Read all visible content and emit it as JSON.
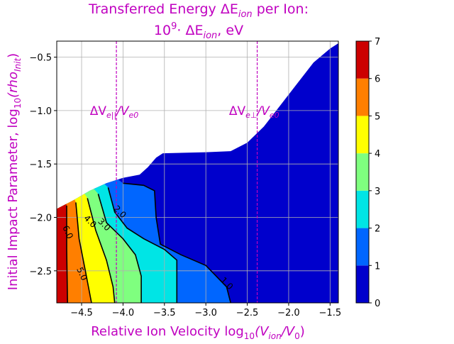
{
  "chart_data": {
    "type": "contourf",
    "title_line1": "Transferred Energy ΔE",
    "title_line1_sub": "ion",
    "title_line1_end": " per Ion:",
    "title_line2_pre": "10",
    "title_line2_sup": "9",
    "title_line2_mid": "· ΔE",
    "title_line2_sub": "ion",
    "title_line2_end": ", eV",
    "xlabel_pre": "Relative Ion Velocity  log",
    "xlabel_sub1": "10",
    "xlabel_mid": "(V",
    "xlabel_sub2": "ion",
    "xlabel_end": "/V",
    "xlabel_sub3": "0",
    "xlabel_close": ")",
    "ylabel_pre": "Initial Impact Parameter, log",
    "ylabel_sub1": "10",
    "ylabel_mid": "(rho",
    "ylabel_sub2": "Init",
    "ylabel_end": ")",
    "xlim": [
      -4.8,
      -1.4
    ],
    "ylim": [
      -2.8,
      -0.35
    ],
    "xticks": [
      -4.5,
      -4.0,
      -3.5,
      -3.0,
      -2.5,
      -2.0,
      -1.5
    ],
    "xtick_labels": [
      "−4.5",
      "−4.0",
      "−3.5",
      "−3.0",
      "−2.5",
      "−2.0",
      "−1.5"
    ],
    "yticks": [
      -0.5,
      -1.0,
      -1.5,
      -2.0,
      -2.5
    ],
    "ytick_labels": [
      "−0.5",
      "−1.0",
      "−1.5",
      "−2.0",
      "−2.5"
    ],
    "grid": true,
    "levels": [
      0,
      1,
      2,
      3,
      4,
      5,
      6,
      7
    ],
    "level_colors": [
      "#0000cc",
      "#0066ff",
      "#00e5e5",
      "#7fff7f",
      "#ffff00",
      "#ff7f00",
      "#cc0000"
    ],
    "colorbar_labels": [
      "0",
      "1",
      "2",
      "3",
      "4",
      "5",
      "6",
      "7"
    ],
    "valid_region_upper_boundary": [
      [
        -4.8,
        -1.92
      ],
      [
        -4.6,
        -1.84
      ],
      [
        -4.4,
        -1.75
      ],
      [
        -4.2,
        -1.68
      ],
      [
        -4.0,
        -1.63
      ],
      [
        -3.8,
        -1.6
      ],
      [
        -3.7,
        -1.53
      ],
      [
        -3.6,
        -1.44
      ],
      [
        -3.52,
        -1.4
      ],
      [
        -3.0,
        -1.39
      ],
      [
        -2.7,
        -1.38
      ],
      [
        -2.5,
        -1.3
      ],
      [
        -2.3,
        -1.15
      ],
      [
        -2.1,
        -0.95
      ],
      [
        -1.9,
        -0.75
      ],
      [
        -1.7,
        -0.55
      ],
      [
        -1.5,
        -0.42
      ],
      [
        -1.4,
        -0.37
      ]
    ],
    "contours": [
      {
        "level": 1,
        "points": [
          [
            -4.0,
            -1.68
          ],
          [
            -3.75,
            -1.7
          ],
          [
            -3.62,
            -1.75
          ],
          [
            -3.6,
            -2.0
          ],
          [
            -3.55,
            -2.25
          ],
          [
            -3.3,
            -2.35
          ],
          [
            -3.0,
            -2.45
          ],
          [
            -2.75,
            -2.65
          ],
          [
            -2.7,
            -2.8
          ]
        ],
        "label": "1.0",
        "label_at": [
          -2.75,
          -2.62
        ]
      },
      {
        "level": 2,
        "points": [
          [
            -4.18,
            -1.72
          ],
          [
            -4.1,
            -1.95
          ],
          [
            -3.95,
            -2.1
          ],
          [
            -3.75,
            -2.2
          ],
          [
            -3.5,
            -2.3
          ],
          [
            -3.35,
            -2.4
          ],
          [
            -3.35,
            -2.8
          ]
        ],
        "label": "2.0",
        "label_at": [
          -4.04,
          -1.95
        ]
      },
      {
        "level": 3,
        "points": [
          [
            -4.3,
            -1.78
          ],
          [
            -4.2,
            -2.05
          ],
          [
            -4.0,
            -2.2
          ],
          [
            -3.85,
            -2.35
          ],
          [
            -3.78,
            -2.55
          ],
          [
            -3.78,
            -2.8
          ]
        ],
        "label": "3.0",
        "label_at": [
          -4.23,
          -2.07
        ]
      },
      {
        "level": 4,
        "points": [
          [
            -4.43,
            -1.82
          ],
          [
            -4.33,
            -2.12
          ],
          [
            -4.2,
            -2.4
          ],
          [
            -4.12,
            -2.65
          ],
          [
            -4.1,
            -2.8
          ]
        ],
        "label": "4.0",
        "label_at": [
          -4.4,
          -2.04
        ]
      },
      {
        "level": 5,
        "points": [
          [
            -4.57,
            -1.86
          ],
          [
            -4.53,
            -2.2
          ],
          [
            -4.45,
            -2.52
          ],
          [
            -4.38,
            -2.8
          ]
        ],
        "label": "5.0",
        "label_at": [
          -4.5,
          -2.53
        ]
      },
      {
        "level": 6,
        "points": [
          [
            -4.68,
            -1.89
          ],
          [
            -4.68,
            -2.3
          ],
          [
            -4.67,
            -2.8
          ]
        ],
        "label": "6.0",
        "label_at": [
          -4.67,
          -2.14
        ]
      }
    ],
    "vlines": [
      {
        "x": -4.08,
        "label_pre": "ΔV",
        "label_sub": "e||",
        "label_end": "/V",
        "label_sub2": "e0",
        "label_at": [
          -4.4,
          -1.0
        ]
      },
      {
        "x": -2.38,
        "label_pre": "ΔV",
        "label_sub": "e⊥",
        "label_end": "/V",
        "label_sub2": "e0",
        "label_at": [
          -2.72,
          -1.0
        ]
      }
    ],
    "accent_color": "#c000c0"
  }
}
